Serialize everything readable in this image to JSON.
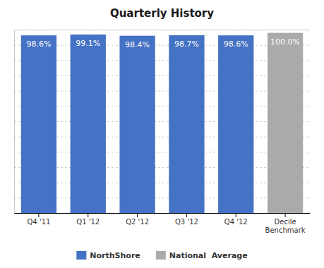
{
  "chart_data": {
    "type": "bar",
    "title": "Quarterly History",
    "categories": [
      "Q4 '11",
      "Q1 '12",
      "Q2 '12",
      "Q3 '12",
      "Q4 '12",
      "Decile\nBenchmark"
    ],
    "series": [
      {
        "name": "NorthShore",
        "color": "#4472C4",
        "values": [
          98.6,
          99.1,
          98.4,
          98.7,
          98.6,
          null
        ],
        "value_labels": [
          "98.6%",
          "99.1%",
          "98.4%",
          "98.7%",
          "98.6%",
          null
        ]
      },
      {
        "name": "National  Average",
        "color": "#AAAAAA",
        "values": [
          null,
          null,
          null,
          null,
          null,
          100.0
        ],
        "value_labels": [
          null,
          null,
          null,
          null,
          null,
          "100.0%"
        ]
      }
    ],
    "ylim": [
      0,
      101.8
    ],
    "yticks": [
      0,
      8.483333333333333,
      16.966666666666665,
      25.45,
      33.93333333333333,
      42.416666666666664,
      50.9,
      59.38333333333333,
      67.86666666666666,
      76.35,
      84.83333333333333,
      93.31666666666666,
      101.8
    ],
    "grid": true,
    "tick_labels": "x",
    "data_labels": true,
    "legend": "bottom"
  }
}
